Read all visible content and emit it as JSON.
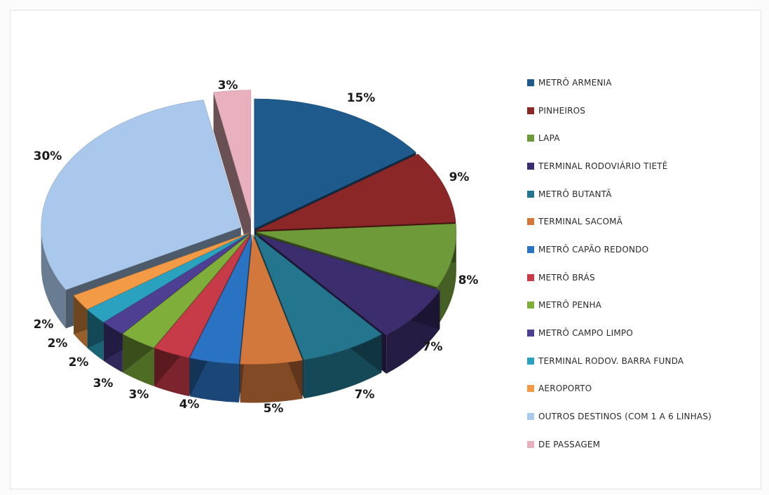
{
  "chart_data": {
    "type": "pie",
    "title": "",
    "categories": [
      "METRÔ ARMENIA",
      "PINHEIROS",
      "LAPA",
      "TERMINAL RODOVIÁRIO TIETÊ",
      "METRÔ BUTANTÃ",
      "TERMINAL SACOMÃ",
      "METRÔ CAPÃO REDONDO",
      "METRÔ BRÁS",
      "METRÔ PENHA",
      "METRÔ CAMPO LIMPO",
      "TERMINAL RODOV. BARRA FUNDA",
      "AEROPORTO",
      "OUTROS DESTINOS  (COM 1 A 6 LINHAS)",
      "DE PASSAGEM"
    ],
    "values": [
      15,
      9,
      8,
      7,
      7,
      5,
      4,
      3,
      3,
      2,
      2,
      2,
      30,
      3
    ],
    "labels": [
      "15%",
      "9%",
      "8%",
      "7%",
      "7%",
      "5%",
      "4%",
      "3%",
      "3%",
      "2%",
      "2%",
      "2%",
      "30%",
      "3%"
    ],
    "colors": [
      "#1f5a8c",
      "#8c2727",
      "#6f9a3a",
      "#3c2d6e",
      "#23768e",
      "#d2783c",
      "#2a73c2",
      "#c73a48",
      "#7fae3b",
      "#4e3f93",
      "#2aa1be",
      "#f29a45",
      "#a9c8ec",
      "#e8b1bd"
    ],
    "legend_position": "right",
    "style": "3d-exploded"
  }
}
